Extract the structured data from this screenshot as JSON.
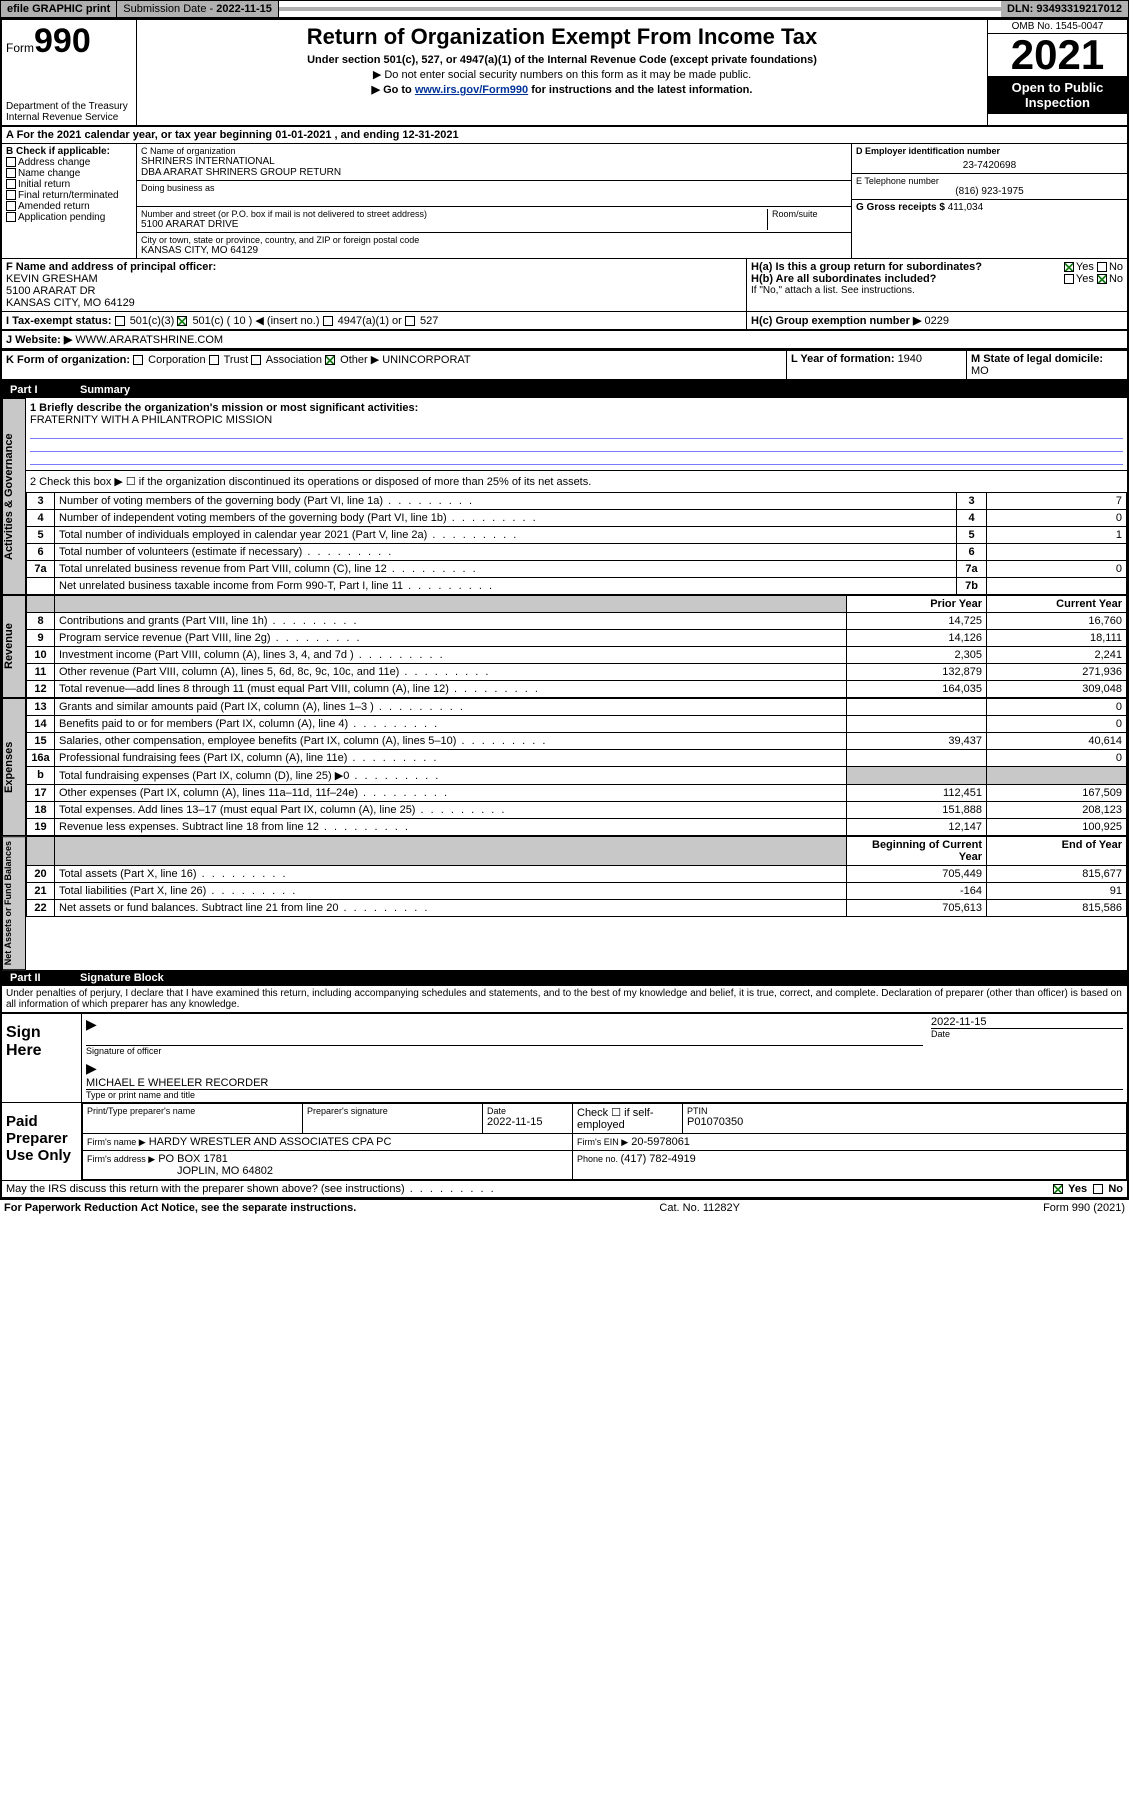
{
  "topbar": {
    "efile": "efile GRAPHIC print",
    "submission_label": "Submission Date - ",
    "submission_date": "2022-11-15",
    "dln_label": "DLN: ",
    "dln": "93493319217012"
  },
  "header": {
    "form_prefix": "Form",
    "form_no": "990",
    "dept": "Department of the Treasury\nInternal Revenue Service",
    "title": "Return of Organization Exempt From Income Tax",
    "sub": "Under section 501(c), 527, or 4947(a)(1) of the Internal Revenue Code (except private foundations)",
    "note1": "▶ Do not enter social security numbers on this form as it may be made public.",
    "note2_pre": "▶ Go to ",
    "note2_link": "www.irs.gov/Form990",
    "note2_post": " for instructions and the latest information.",
    "omb": "OMB No. 1545-0047",
    "year": "2021",
    "open": "Open to Public Inspection"
  },
  "period": {
    "a_label": "A For the 2021 calendar year, or tax year beginning ",
    "begin": "01-01-2021",
    "mid": " , and ending ",
    "end": "12-31-2021"
  },
  "boxB": {
    "hdr": "B Check if applicable:",
    "items": [
      "Address change",
      "Name change",
      "Initial return",
      "Final return/terminated",
      "Amended return",
      "Application pending"
    ]
  },
  "boxC": {
    "name_label": "C Name of organization",
    "name1": "SHRINERS INTERNATIONAL",
    "name2": "DBA ARARAT SHRINERS GROUP RETURN",
    "dba": "Doing business as",
    "addr_label": "Number and street (or P.O. box if mail is not delivered to street address)",
    "room": "Room/suite",
    "addr": "5100 ARARAT DRIVE",
    "city_label": "City or town, state or province, country, and ZIP or foreign postal code",
    "city": "KANSAS CITY, MO  64129"
  },
  "boxD": {
    "label": "D Employer identification number",
    "value": "23-7420698"
  },
  "boxE": {
    "label": "E Telephone number",
    "value": "(816) 923-1975"
  },
  "boxG": {
    "label": "G Gross receipts $ ",
    "value": "411,034"
  },
  "boxF": {
    "label": "F Name and address of principal officer:",
    "name": "KEVIN GRESHAM",
    "addr1": "5100 ARARAT DR",
    "addr2": "KANSAS CITY, MO  64129"
  },
  "boxH": {
    "ha": "H(a)  Is this a group return for subordinates?",
    "hb": "H(b)  Are all subordinates included?",
    "hb_note": "If \"No,\" attach a list. See instructions.",
    "hc": "H(c)  Group exemption number ▶  ",
    "hc_val": "0229",
    "yes": "Yes",
    "no": "No"
  },
  "boxI": {
    "label": "I  Tax-exempt status:",
    "opt1": "501(c)(3)",
    "opt2": "501(c) ( 10 ) ◀ (insert no.)",
    "opt3": "4947(a)(1) or",
    "opt4": "527"
  },
  "boxJ": {
    "label": "J  Website: ▶ ",
    "value": "WWW.ARARATSHRINE.COM"
  },
  "boxK": {
    "label": "K Form of organization:",
    "opts": [
      "Corporation",
      "Trust",
      "Association",
      "Other ▶"
    ],
    "other": "UNINCORPORAT"
  },
  "boxL": {
    "label": "L Year of formation: ",
    "value": "1940"
  },
  "boxM": {
    "label": "M State of legal domicile:",
    "value": "MO"
  },
  "part1": {
    "title": "Part I",
    "name": "Summary"
  },
  "line1": {
    "label": "1  Briefly describe the organization's mission or most significant activities:",
    "value": "FRATERNITY WITH A PHILANTROPIC MISSION"
  },
  "line2": "2  Check this box ▶ ☐  if the organization discontinued its operations or disposed of more than 25% of its net assets.",
  "tabs": {
    "gov": "Activities & Governance",
    "rev": "Revenue",
    "exp": "Expenses",
    "net": "Net Assets or Fund Balances"
  },
  "cols": {
    "prior": "Prior Year",
    "curr": "Current Year",
    "beg": "Beginning of Current Year",
    "end": "End of Year"
  },
  "gov_rows": [
    {
      "n": "3",
      "t": "Number of voting members of the governing body (Part VI, line 1a)",
      "box": "3",
      "v": "7"
    },
    {
      "n": "4",
      "t": "Number of independent voting members of the governing body (Part VI, line 1b)",
      "box": "4",
      "v": "0"
    },
    {
      "n": "5",
      "t": "Total number of individuals employed in calendar year 2021 (Part V, line 2a)",
      "box": "5",
      "v": "1"
    },
    {
      "n": "6",
      "t": "Total number of volunteers (estimate if necessary)",
      "box": "6",
      "v": ""
    },
    {
      "n": "7a",
      "t": "Total unrelated business revenue from Part VIII, column (C), line 12",
      "box": "7a",
      "v": "0"
    },
    {
      "n": "",
      "t": "Net unrelated business taxable income from Form 990-T, Part I, line 11",
      "box": "7b",
      "v": ""
    }
  ],
  "rev_rows": [
    {
      "n": "8",
      "t": "Contributions and grants (Part VIII, line 1h)",
      "p": "14,725",
      "c": "16,760"
    },
    {
      "n": "9",
      "t": "Program service revenue (Part VIII, line 2g)",
      "p": "14,126",
      "c": "18,111"
    },
    {
      "n": "10",
      "t": "Investment income (Part VIII, column (A), lines 3, 4, and 7d )",
      "p": "2,305",
      "c": "2,241"
    },
    {
      "n": "11",
      "t": "Other revenue (Part VIII, column (A), lines 5, 6d, 8c, 9c, 10c, and 11e)",
      "p": "132,879",
      "c": "271,936"
    },
    {
      "n": "12",
      "t": "Total revenue—add lines 8 through 11 (must equal Part VIII, column (A), line 12)",
      "p": "164,035",
      "c": "309,048"
    }
  ],
  "exp_rows": [
    {
      "n": "13",
      "t": "Grants and similar amounts paid (Part IX, column (A), lines 1–3 )",
      "p": "",
      "c": "0"
    },
    {
      "n": "14",
      "t": "Benefits paid to or for members (Part IX, column (A), line 4)",
      "p": "",
      "c": "0"
    },
    {
      "n": "15",
      "t": "Salaries, other compensation, employee benefits (Part IX, column (A), lines 5–10)",
      "p": "39,437",
      "c": "40,614"
    },
    {
      "n": "16a",
      "t": "Professional fundraising fees (Part IX, column (A), line 11e)",
      "p": "",
      "c": "0"
    },
    {
      "n": "b",
      "t": "Total fundraising expenses (Part IX, column (D), line 25) ▶0",
      "p": "shade",
      "c": "shade"
    },
    {
      "n": "17",
      "t": "Other expenses (Part IX, column (A), lines 11a–11d, 11f–24e)",
      "p": "112,451",
      "c": "167,509"
    },
    {
      "n": "18",
      "t": "Total expenses. Add lines 13–17 (must equal Part IX, column (A), line 25)",
      "p": "151,888",
      "c": "208,123"
    },
    {
      "n": "19",
      "t": "Revenue less expenses. Subtract line 18 from line 12",
      "p": "12,147",
      "c": "100,925"
    }
  ],
  "net_rows": [
    {
      "n": "20",
      "t": "Total assets (Part X, line 16)",
      "p": "705,449",
      "c": "815,677"
    },
    {
      "n": "21",
      "t": "Total liabilities (Part X, line 26)",
      "p": "-164",
      "c": "91"
    },
    {
      "n": "22",
      "t": "Net assets or fund balances. Subtract line 21 from line 20",
      "p": "705,613",
      "c": "815,586"
    }
  ],
  "part2": {
    "title": "Part II",
    "name": "Signature Block"
  },
  "sig": {
    "perjury": "Under penalties of perjury, I declare that I have examined this return, including accompanying schedules and statements, and to the best of my knowledge and belief, it is true, correct, and complete. Declaration of preparer (other than officer) is based on all information of which preparer has any knowledge.",
    "sign_here": "Sign Here",
    "sig_of_officer": "Signature of officer",
    "date_label": "Date",
    "sig_date": "2022-11-15",
    "officer": "MICHAEL E WHEELER RECORDER",
    "type_name": "Type or print name and title",
    "paid": "Paid Preparer Use Only",
    "prep_name_lbl": "Print/Type preparer's name",
    "prep_sig_lbl": "Preparer's signature",
    "prep_date_lbl": "Date",
    "prep_date": "2022-11-15",
    "check_if": "Check ☐ if self-employed",
    "ptin_lbl": "PTIN",
    "ptin": "P01070350",
    "firm_name_lbl": "Firm's name    ▶",
    "firm_name": "HARDY WRESTLER AND ASSOCIATES CPA PC",
    "firm_ein_lbl": "Firm's EIN ▶",
    "firm_ein": "20-5978061",
    "firm_addr_lbl": "Firm's address ▶",
    "firm_addr1": "PO BOX 1781",
    "firm_addr2": "JOPLIN, MO  64802",
    "phone_lbl": "Phone no. ",
    "phone": "(417) 782-4919",
    "discuss": "May the IRS discuss this return with the preparer shown above? (see instructions)"
  },
  "footer": {
    "left": "For Paperwork Reduction Act Notice, see the separate instructions.",
    "mid": "Cat. No. 11282Y",
    "right": "Form 990 (2021)"
  }
}
